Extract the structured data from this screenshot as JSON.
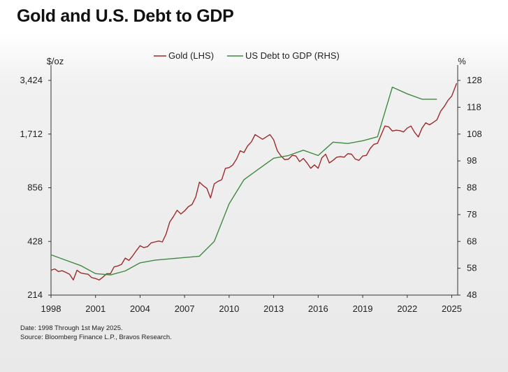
{
  "title": "Gold and U.S. Debt to GDP",
  "footnote": {
    "date": "Date: 1998 Through 1st May 2025.",
    "source": "Source: Bloomberg Finance L.P., Bravos Research."
  },
  "colors": {
    "gold": "#9e2a2b",
    "debt": "#3f8a3f",
    "axis": "#333333",
    "text": "#222222"
  },
  "chart_data": {
    "type": "line",
    "left_axis": {
      "unit": "$/oz",
      "scale": "log",
      "range": [
        214,
        3424
      ],
      "ticks": [
        "214",
        "428",
        "856",
        "1,712",
        "3,424"
      ],
      "tick_values": [
        214,
        428,
        856,
        1712,
        3424
      ]
    },
    "right_axis": {
      "unit": "%",
      "scale": "linear",
      "range": [
        48,
        128
      ],
      "ticks": [
        "48",
        "58",
        "68",
        "78",
        "88",
        "98",
        "108",
        "118",
        "128"
      ]
    },
    "x_axis": {
      "range": [
        1998,
        2025.4
      ],
      "ticks": [
        "1998",
        "2001",
        "2004",
        "2007",
        "2010",
        "2013",
        "2016",
        "2019",
        "2022",
        "2025"
      ],
      "tick_values": [
        1998,
        2001,
        2004,
        2007,
        2010,
        2013,
        2016,
        2019,
        2022,
        2025
      ]
    },
    "legend": {
      "position": "top-center"
    },
    "series": [
      {
        "name": "Gold (LHS)",
        "axis": "left",
        "color": "#9e2a2b",
        "x": [
          1998,
          1998.25,
          1998.5,
          1998.75,
          1999,
          1999.25,
          1999.5,
          1999.75,
          2000,
          2000.25,
          2000.5,
          2000.75,
          2001,
          2001.25,
          2001.5,
          2001.75,
          2002,
          2002.25,
          2002.5,
          2002.75,
          2003,
          2003.25,
          2003.5,
          2003.75,
          2004,
          2004.25,
          2004.5,
          2004.75,
          2005,
          2005.25,
          2005.5,
          2005.75,
          2006,
          2006.25,
          2006.5,
          2006.75,
          2007,
          2007.25,
          2007.5,
          2007.75,
          2008,
          2008.25,
          2008.5,
          2008.75,
          2009,
          2009.25,
          2009.5,
          2009.75,
          2010,
          2010.25,
          2010.5,
          2010.75,
          2011,
          2011.25,
          2011.5,
          2011.75,
          2012,
          2012.25,
          2012.5,
          2012.75,
          2013,
          2013.25,
          2013.5,
          2013.75,
          2014,
          2014.25,
          2014.5,
          2014.75,
          2015,
          2015.25,
          2015.5,
          2015.75,
          2016,
          2016.25,
          2016.5,
          2016.75,
          2017,
          2017.25,
          2017.5,
          2017.75,
          2018,
          2018.25,
          2018.5,
          2018.75,
          2019,
          2019.25,
          2019.5,
          2019.75,
          2020,
          2020.25,
          2020.5,
          2020.75,
          2021,
          2021.25,
          2021.5,
          2021.75,
          2022,
          2022.25,
          2022.5,
          2022.75,
          2023,
          2023.25,
          2023.5,
          2023.75,
          2024,
          2024.25,
          2024.5,
          2024.75,
          2025,
          2025.33
        ],
        "values": [
          295,
          300,
          290,
          293,
          287,
          280,
          260,
          295,
          285,
          282,
          280,
          268,
          265,
          260,
          270,
          282,
          282,
          308,
          312,
          318,
          345,
          335,
          355,
          380,
          405,
          395,
          400,
          420,
          425,
          430,
          425,
          470,
          550,
          590,
          640,
          610,
          635,
          670,
          690,
          760,
          920,
          880,
          850,
          750,
          900,
          930,
          950,
          1100,
          1110,
          1150,
          1240,
          1380,
          1350,
          1470,
          1550,
          1700,
          1650,
          1600,
          1650,
          1700,
          1590,
          1380,
          1290,
          1230,
          1240,
          1300,
          1290,
          1200,
          1250,
          1180,
          1100,
          1150,
          1100,
          1260,
          1320,
          1180,
          1220,
          1270,
          1280,
          1270,
          1330,
          1320,
          1240,
          1220,
          1290,
          1300,
          1420,
          1500,
          1520,
          1700,
          1900,
          1880,
          1780,
          1800,
          1790,
          1760,
          1850,
          1900,
          1750,
          1650,
          1850,
          1980,
          1930,
          1990,
          2060,
          2300,
          2450,
          2650,
          2800,
          3300
        ]
      },
      {
        "name": "US Debt to GDP (RHS)",
        "axis": "right",
        "color": "#3f8a3f",
        "x": [
          1998,
          1999,
          2000,
          2001,
          2002,
          2003,
          2004,
          2005,
          2006,
          2007,
          2008,
          2009,
          2010,
          2011,
          2012,
          2013,
          2014,
          2015,
          2016,
          2017,
          2018,
          2019,
          2020,
          2021,
          2022,
          2023,
          2024
        ],
        "values": [
          63,
          61,
          59,
          56,
          55.5,
          57,
          60,
          61,
          61.5,
          62,
          62.5,
          68,
          82,
          91,
          95,
          99,
          100,
          102,
          100,
          105,
          104.5,
          105.5,
          107,
          125.5,
          123,
          121,
          121
        ]
      }
    ]
  }
}
